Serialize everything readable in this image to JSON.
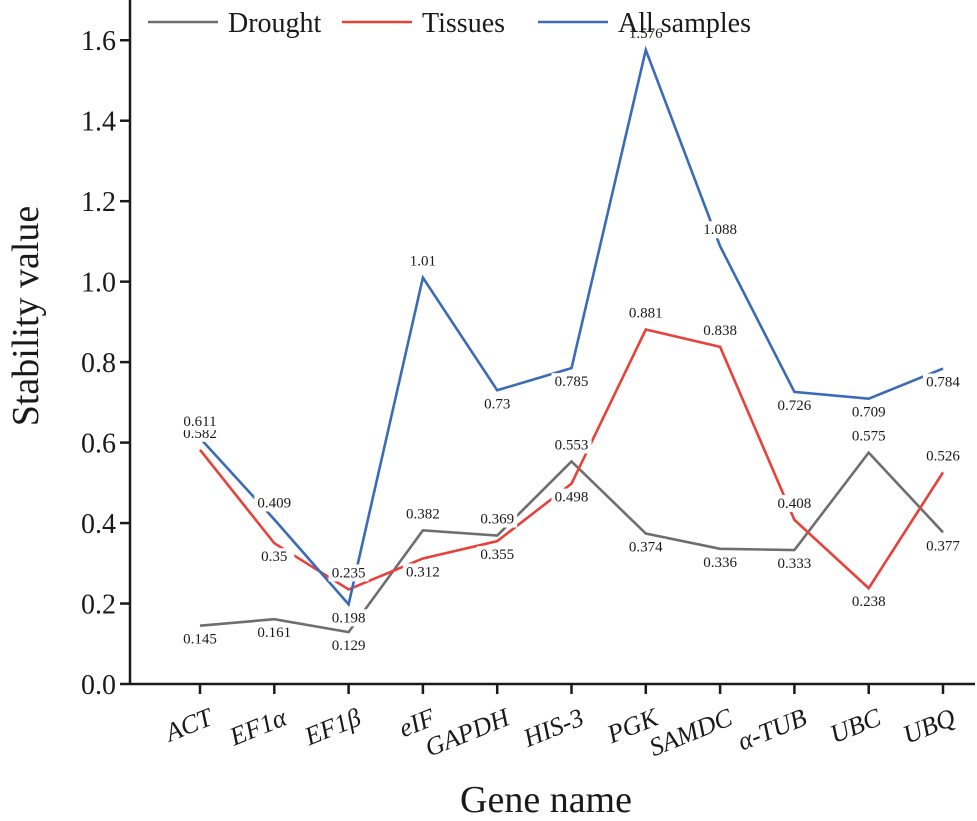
{
  "chart_data": {
    "type": "line",
    "xlabel": "Gene name",
    "ylabel": "Stability value",
    "ylim": [
      0,
      1.7
    ],
    "yticks": [
      0.0,
      0.2,
      0.4,
      0.6,
      0.8,
      1.0,
      1.2,
      1.4,
      1.6
    ],
    "ytick_labels": [
      "0.0",
      "0.2",
      "0.4",
      "0.6",
      "0.8",
      "1.0",
      "1.2",
      "1.4",
      "1.6"
    ],
    "categories": [
      "ACT",
      "EF1α",
      "EF1β",
      "eIF",
      "GAPDH",
      "HIS-3",
      "PGK",
      "SAMDC",
      "α-TUB",
      "UBC",
      "UBQ"
    ],
    "grid": false,
    "legend_position": "top",
    "series": [
      {
        "name": "Drought",
        "color": "#6e6e6e",
        "values": [
          0.145,
          0.161,
          0.129,
          0.382,
          0.369,
          0.553,
          0.374,
          0.336,
          0.333,
          0.575,
          0.377
        ],
        "labels": [
          "0.145",
          "0.161",
          "0.129",
          "0.382",
          "0.369",
          "0.553",
          "0.374",
          "0.336",
          "0.333",
          "0.575",
          "0.377"
        ]
      },
      {
        "name": "Tissues",
        "color": "#e8413a",
        "values": [
          0.582,
          0.35,
          0.235,
          0.312,
          0.355,
          0.498,
          0.881,
          0.838,
          0.408,
          0.238,
          0.526
        ],
        "labels": [
          "0.582",
          "0.35",
          "0.235",
          "0.312",
          "0.355",
          "0.498",
          "0.881",
          "0.838",
          "0.408",
          "0.238",
          "0.526"
        ]
      },
      {
        "name": "All samples",
        "color": "#3b6bb5",
        "values": [
          0.611,
          0.409,
          0.198,
          1.01,
          0.73,
          0.785,
          1.576,
          1.088,
          0.726,
          0.709,
          0.784
        ],
        "labels": [
          "0.611",
          "0.409",
          "0.198",
          "1.01",
          "0.73",
          "0.785",
          "1.576",
          "1.088",
          "0.726",
          "0.709",
          "0.784"
        ]
      }
    ]
  }
}
